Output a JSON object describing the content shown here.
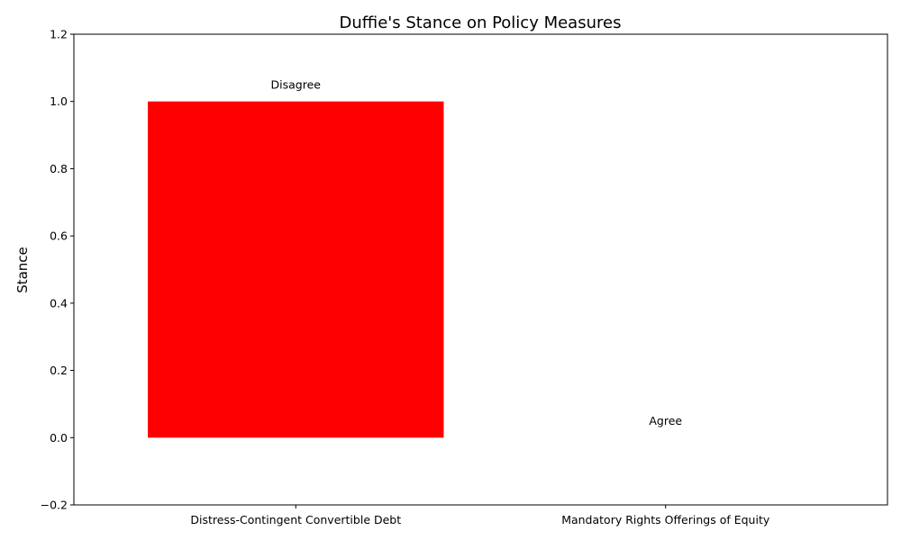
{
  "chart_data": {
    "type": "bar",
    "title": "Duffie's Stance on Policy Measures",
    "xlabel": "",
    "ylabel": "Stance",
    "categories": [
      "Distress-Contingent Convertible Debt",
      "Mandatory Rights Offerings of Equity"
    ],
    "values": [
      1,
      0
    ],
    "bar_colors": [
      "#ff0000",
      "#008000"
    ],
    "bar_labels": [
      "Disagree",
      "Agree"
    ],
    "ylim": [
      -0.2,
      1.2
    ],
    "yticks": [
      -0.2,
      0.0,
      0.2,
      0.4,
      0.6,
      0.8,
      1.0,
      1.2
    ],
    "ytick_labels": [
      "−0.2",
      "0.0",
      "0.2",
      "0.4",
      "0.6",
      "0.8",
      "1.0",
      "1.2"
    ],
    "grid": false,
    "legend": "none"
  }
}
